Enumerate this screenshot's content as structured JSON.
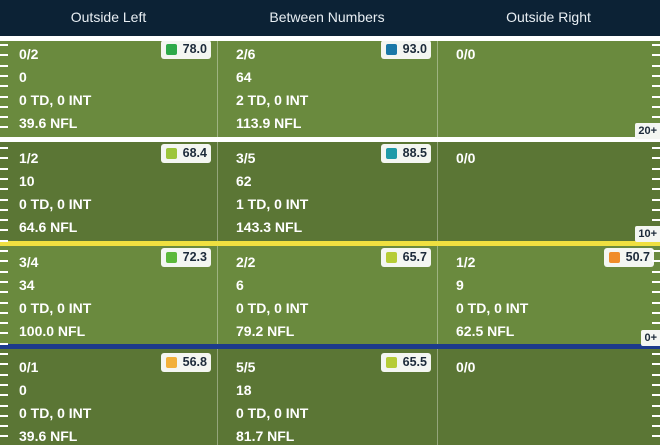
{
  "header": {
    "columns": [
      "Outside Left",
      "Between Numbers",
      "Outside Right"
    ]
  },
  "yard_markers": [
    "20+",
    "10+",
    "0+"
  ],
  "rows": [
    {
      "cells": [
        {
          "comp": "0/2",
          "yards": "0",
          "td_int": "0 TD, 0 INT",
          "rating": "39.6 NFL",
          "grade": "78.0",
          "grade_color": "#2eaa4a"
        },
        {
          "comp": "2/6",
          "yards": "64",
          "td_int": "2 TD, 0 INT",
          "rating": "113.9 NFL",
          "grade": "93.0",
          "grade_color": "#1a78a8"
        },
        {
          "comp": "0/0",
          "yards": "",
          "td_int": "",
          "rating": "",
          "grade": "",
          "grade_color": ""
        }
      ]
    },
    {
      "cells": [
        {
          "comp": "1/2",
          "yards": "10",
          "td_int": "0 TD, 0 INT",
          "rating": "64.6 NFL",
          "grade": "68.4",
          "grade_color": "#9cc53a"
        },
        {
          "comp": "3/5",
          "yards": "62",
          "td_int": "1 TD, 0 INT",
          "rating": "143.3 NFL",
          "grade": "88.5",
          "grade_color": "#1f9aa8"
        },
        {
          "comp": "0/0",
          "yards": "",
          "td_int": "",
          "rating": "",
          "grade": "",
          "grade_color": ""
        }
      ]
    },
    {
      "cells": [
        {
          "comp": "3/4",
          "yards": "34",
          "td_int": "0 TD, 0 INT",
          "rating": "100.0 NFL",
          "grade": "72.3",
          "grade_color": "#5cb83a"
        },
        {
          "comp": "2/2",
          "yards": "6",
          "td_int": "0 TD, 0 INT",
          "rating": "79.2 NFL",
          "grade": "65.7",
          "grade_color": "#b6cc36"
        },
        {
          "comp": "1/2",
          "yards": "9",
          "td_int": "0 TD, 0 INT",
          "rating": "62.5 NFL",
          "grade": "50.7",
          "grade_color": "#f08c2a"
        }
      ]
    },
    {
      "cells": [
        {
          "comp": "0/1",
          "yards": "0",
          "td_int": "0 TD, 0 INT",
          "rating": "39.6 NFL",
          "grade": "56.8",
          "grade_color": "#f2b03a"
        },
        {
          "comp": "5/5",
          "yards": "18",
          "td_int": "0 TD, 0 INT",
          "rating": "81.7 NFL",
          "grade": "65.5",
          "grade_color": "#b6cc36"
        },
        {
          "comp": "0/0",
          "yards": "",
          "td_int": "",
          "rating": "",
          "grade": "",
          "grade_color": ""
        }
      ]
    }
  ],
  "colors": {
    "header_bg": "#0c2235",
    "first_down_line": "#f0e040",
    "line_of_scrimmage": "#1c3a8c"
  }
}
